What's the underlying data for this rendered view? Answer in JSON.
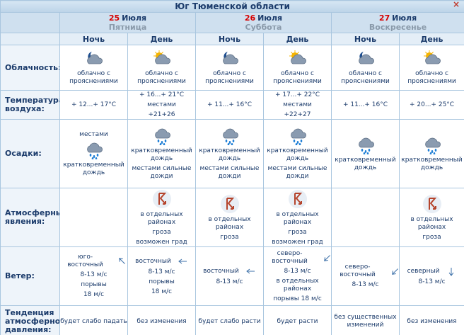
{
  "header": {
    "title": "Юг Тюменской области",
    "close": "×"
  },
  "days": [
    {
      "day_number": "25",
      "month": "Июля",
      "weekday": "Пятница"
    },
    {
      "day_number": "26",
      "month": "Июля",
      "weekday": "Суббота"
    },
    {
      "day_number": "27",
      "month": "Июля",
      "weekday": "Воскресенье"
    }
  ],
  "periods": [
    "Ночь",
    "День",
    "Ночь",
    "День",
    "Ночь",
    "День"
  ],
  "rows": [
    {
      "label": "Облачность:",
      "cells": [
        [
          "облачно с прояснениями"
        ],
        [
          "облачно с прояснениями"
        ],
        [
          "облачно с прояснениями"
        ],
        [
          "облачно с прояснениями"
        ],
        [
          "облачно с прояснениями"
        ],
        [
          "облачно с прояснениями"
        ]
      ]
    },
    {
      "label": "Температура воздуха:",
      "cells": [
        [
          "+ 12...+ 17°C"
        ],
        [
          "+ 16...+ 21°C",
          "местами",
          "+21+26"
        ],
        [
          "+ 11...+ 16°C"
        ],
        [
          "+ 17...+ 22°C",
          "местами",
          "+22+27"
        ],
        [
          "+ 11...+ 16°C"
        ],
        [
          "+ 20...+ 25°C"
        ]
      ]
    },
    {
      "label": "Осадки:",
      "cells": [
        [
          "местами",
          "кратковременный дождь"
        ],
        [
          "кратковременный дождь",
          "местами сильные дожди"
        ],
        [
          "кратковременный дождь",
          "местами сильные дожди"
        ],
        [
          "кратковременный дождь",
          "местами сильные дожди"
        ],
        [
          "кратковременный дождь"
        ],
        [
          "кратковременный дождь"
        ]
      ]
    },
    {
      "label": "Атмосферные явления:",
      "cells": [
        [],
        [
          "в отдельных районах",
          "гроза",
          "возможен град"
        ],
        [
          "в отдельных районах",
          "гроза"
        ],
        [
          "в отдельных районах",
          "гроза",
          "возможен град"
        ],
        [],
        [
          "в отдельных районах",
          "гроза"
        ]
      ]
    },
    {
      "label": "Ветер:",
      "cells": [
        [
          "юго-восточный",
          "8-13 м/с",
          "порывы",
          "18 м/с"
        ],
        [
          "восточный",
          "8-13 м/с",
          "порывы",
          "18 м/с"
        ],
        [
          "восточный",
          "8-13 м/с"
        ],
        [
          "северо-восточный",
          "8-13 м/с",
          "в отдельных районах",
          "порывы 18 м/с"
        ],
        [
          "северо-восточный",
          "8-13 м/с"
        ],
        [
          "северный",
          "8-13 м/с"
        ]
      ]
    },
    {
      "label": "Тенденция атмосферного давления:",
      "cells": [
        [
          "будет слабо падать"
        ],
        [
          "без изменения"
        ],
        [
          "будет слабо расти"
        ],
        [
          "будет расти"
        ],
        [
          "без существенных изменений"
        ],
        [
          "без изменения"
        ]
      ]
    }
  ]
}
